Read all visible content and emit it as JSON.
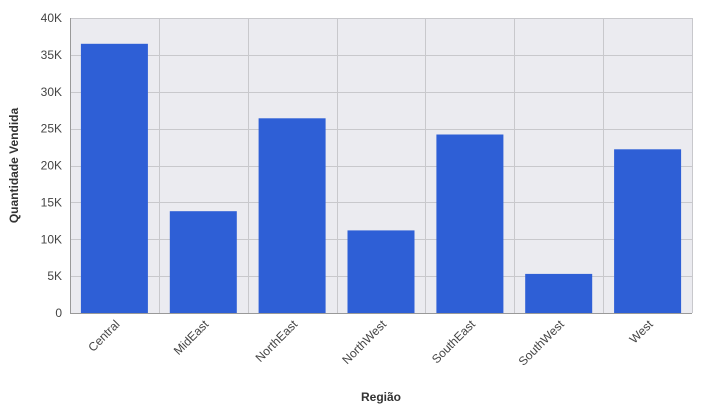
{
  "colors": {
    "bar": "#2e5fd6",
    "plot_background": "#ebebf0",
    "gridline": "#c8c8cc",
    "axis": "#999999"
  },
  "chart_data": {
    "type": "bar",
    "title": "",
    "xlabel": "Região",
    "ylabel": "Quantidade Vendida",
    "categories": [
      "Central",
      "MidEast",
      "NorthEast",
      "NorthWest",
      "SouthEast",
      "SouthWest",
      "West"
    ],
    "values": [
      36500,
      13800,
      26400,
      11200,
      24200,
      5300,
      22200
    ],
    "ylim": [
      0,
      40000
    ],
    "yticks": [
      0,
      5000,
      10000,
      15000,
      20000,
      25000,
      30000,
      35000,
      40000
    ],
    "ytick_labels": [
      "0",
      "5K",
      "10K",
      "15K",
      "20K",
      "25K",
      "30K",
      "35K",
      "40K"
    ],
    "grid": true,
    "legend": "none"
  }
}
